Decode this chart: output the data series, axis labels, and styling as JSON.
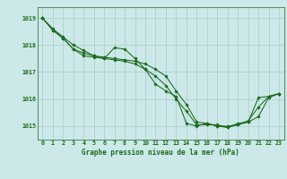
{
  "background_color": "#cce8e8",
  "grid_color": "#aacccc",
  "line_color": "#1a6b1a",
  "marker_color": "#1a6b1a",
  "title": "Graphe pression niveau de la mer (hPa)",
  "ylabel_ticks": [
    1015,
    1016,
    1017,
    1018,
    1019
  ],
  "xlim": [
    -0.5,
    23.5
  ],
  "ylim": [
    1014.5,
    1019.4
  ],
  "hours": [
    0,
    1,
    2,
    3,
    4,
    5,
    6,
    7,
    8,
    9,
    10,
    11,
    12,
    13,
    14,
    15,
    16,
    17,
    18,
    19,
    20,
    21,
    22,
    23
  ],
  "line1": [
    1019.0,
    1018.6,
    1018.3,
    1018.0,
    1017.8,
    1017.6,
    1017.5,
    1017.9,
    1017.85,
    1017.5,
    1017.1,
    1016.55,
    1016.3,
    1016.1,
    1015.1,
    1015.0,
    1015.1,
    1015.0,
    1014.95,
    1015.1,
    1015.15,
    1016.05,
    1016.1,
    1016.2
  ],
  "line2": [
    1019.0,
    1018.55,
    1018.25,
    1017.85,
    1017.6,
    1017.55,
    1017.5,
    1017.45,
    1017.4,
    1017.3,
    1017.1,
    1016.85,
    1016.5,
    1016.0,
    1015.55,
    1015.05,
    1015.05,
    1015.05,
    1014.95,
    1015.05,
    1015.2,
    1015.7,
    1016.1,
    1016.2
  ],
  "line3": [
    1019.0,
    1018.55,
    1018.25,
    1017.85,
    1017.7,
    1017.6,
    1017.55,
    1017.5,
    1017.45,
    1017.4,
    1017.3,
    1017.1,
    1016.85,
    1016.3,
    1015.8,
    1015.15,
    1015.1,
    1015.0,
    1015.0,
    1015.05,
    1015.15,
    1015.35,
    1016.05,
    1016.2
  ],
  "title_fontsize": 5.5,
  "tick_fontsize": 4.8
}
